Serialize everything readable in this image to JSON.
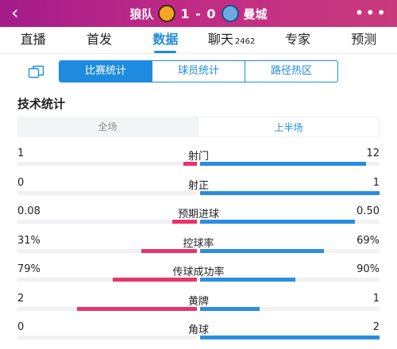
{
  "header": {
    "home_team": "狼队",
    "score": "1 - 0",
    "away_team": "曼城",
    "more_label": "•••"
  },
  "tabs": [
    {
      "label": "直播",
      "active": false
    },
    {
      "label": "首发",
      "active": false
    },
    {
      "label": "数据",
      "active": true
    },
    {
      "label": "聊天",
      "count": "2462",
      "active": false
    },
    {
      "label": "专家",
      "active": false
    },
    {
      "label": "预测",
      "active": false
    }
  ],
  "subtabs": [
    {
      "label": "比赛统计",
      "active": true
    },
    {
      "label": "球员统计",
      "active": false
    },
    {
      "label": "路径热区",
      "active": false
    }
  ],
  "section_title": "技术统计",
  "period": [
    {
      "label": "全场",
      "active": false
    },
    {
      "label": "上半场",
      "active": true
    }
  ],
  "colors": {
    "home": "#e8346b",
    "away": "#2a8de0",
    "accent": "#1f8be0"
  },
  "stats": [
    {
      "name": "射门",
      "home": "1",
      "away": "12",
      "home_ratio": 0.077,
      "away_ratio": 0.923
    },
    {
      "name": "射正",
      "home": "0",
      "away": "1",
      "home_ratio": 0.0,
      "away_ratio": 1.0
    },
    {
      "name": "预期进球",
      "home": "0.08",
      "away": "0.50",
      "home_ratio": 0.138,
      "away_ratio": 0.862
    },
    {
      "name": "控球率",
      "home": "31%",
      "away": "69%",
      "home_ratio": 0.31,
      "away_ratio": 0.69
    },
    {
      "name": "传球成功率",
      "home": "79%",
      "away": "90%",
      "home_ratio": 0.467,
      "away_ratio": 0.533
    },
    {
      "name": "黄牌",
      "home": "2",
      "away": "1",
      "home_ratio": 0.667,
      "away_ratio": 0.333
    },
    {
      "name": "角球",
      "home": "0",
      "away": "2",
      "home_ratio": 0.0,
      "away_ratio": 1.0
    }
  ]
}
